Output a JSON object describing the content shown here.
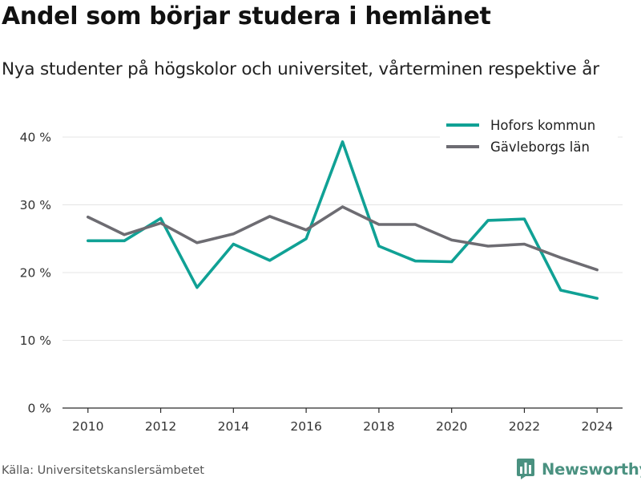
{
  "title": "Andel som börjar studera i hemlänet",
  "subtitle": "Nya studenter på högskolor och universitet, vårterminen respektive år",
  "source": "Källa: Universitetskanslersämbetet",
  "logo": {
    "text": "Newsworthy",
    "color": "#4a9180"
  },
  "chart_data": {
    "type": "line",
    "title": "Andel som börjar studera i hemlänet",
    "subtitle": "Nya studenter på högskolor och universitet, vårterminen respektive år",
    "x": [
      2010,
      2011,
      2012,
      2013,
      2014,
      2015,
      2016,
      2017,
      2018,
      2019,
      2020,
      2021,
      2022,
      2023,
      2024
    ],
    "xlim": [
      2009.3,
      2024.7
    ],
    "ylim": [
      0,
      40
    ],
    "x_ticks": [
      2010,
      2012,
      2014,
      2016,
      2018,
      2020,
      2022,
      2024
    ],
    "y_ticks": [
      0,
      10,
      20,
      30,
      40
    ],
    "y_tick_labels": [
      "0 %",
      "10 %",
      "20 %",
      "30 %",
      "40 %"
    ],
    "x_tick_labels": [
      "2010",
      "2012",
      "2014",
      "2016",
      "2018",
      "2020",
      "2022",
      "2024"
    ],
    "grid": true,
    "legend_position": "top-right",
    "series": [
      {
        "name": "Hofors kommun",
        "color": "#10a195",
        "values": [
          24.7,
          24.7,
          28.0,
          17.8,
          24.2,
          21.8,
          25.0,
          39.3,
          23.9,
          21.7,
          21.6,
          27.7,
          27.9,
          17.4,
          16.2
        ]
      },
      {
        "name": "Gävleborgs län",
        "color": "#6d6c72",
        "values": [
          28.2,
          25.6,
          27.3,
          24.4,
          25.7,
          28.3,
          26.3,
          29.7,
          27.1,
          27.1,
          24.8,
          23.9,
          24.2,
          22.2,
          20.4
        ]
      }
    ]
  }
}
